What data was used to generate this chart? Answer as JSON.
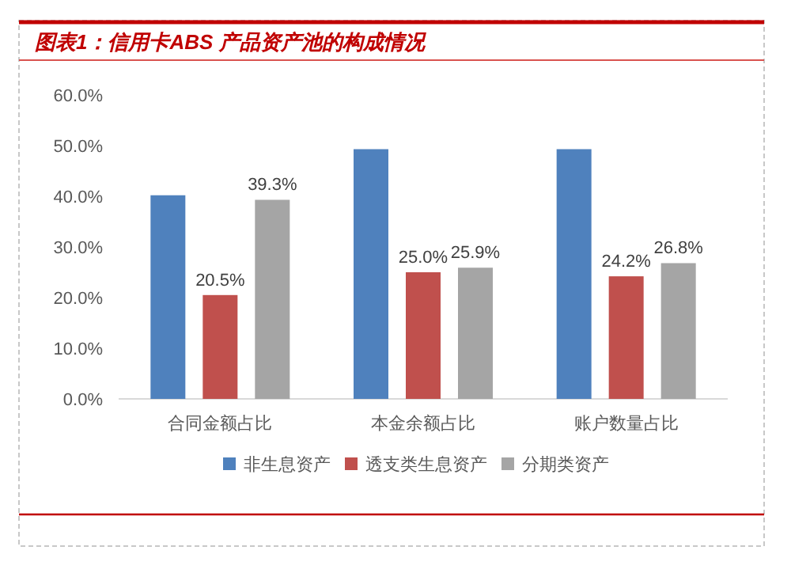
{
  "chart_data": {
    "type": "bar",
    "title": "图表1：信用卡ABS 产品资产池的构成情况",
    "categories": [
      "合同金额占比",
      "本金余额占比",
      "账户数量占比"
    ],
    "series": [
      {
        "name": "非生息资产",
        "color": "#4f81bd",
        "values": [
          40.2,
          49.3,
          49.3
        ],
        "value_labels": [
          null,
          null,
          null
        ]
      },
      {
        "name": "透支类生息资产",
        "color": "#c0504d",
        "values": [
          20.5,
          25.0,
          24.2
        ],
        "value_labels": [
          "20.5%",
          "25.0%",
          "24.2%"
        ]
      },
      {
        "name": "分期类资产",
        "color": "#a5a5a5",
        "values": [
          39.3,
          25.9,
          26.8
        ],
        "value_labels": [
          "39.3%",
          "25.9%",
          "26.8%"
        ]
      }
    ],
    "ylim": [
      0,
      60
    ],
    "yticks": [
      {
        "value": 0,
        "label": "0.0%"
      },
      {
        "value": 10,
        "label": "10.0%"
      },
      {
        "value": 20,
        "label": "20.0%"
      },
      {
        "value": 30,
        "label": "30.0%"
      },
      {
        "value": 40,
        "label": "40.0%"
      },
      {
        "value": 50,
        "label": "50.0%"
      },
      {
        "value": 60,
        "label": "60.0%"
      }
    ],
    "grid": false,
    "legend": "bottom"
  }
}
